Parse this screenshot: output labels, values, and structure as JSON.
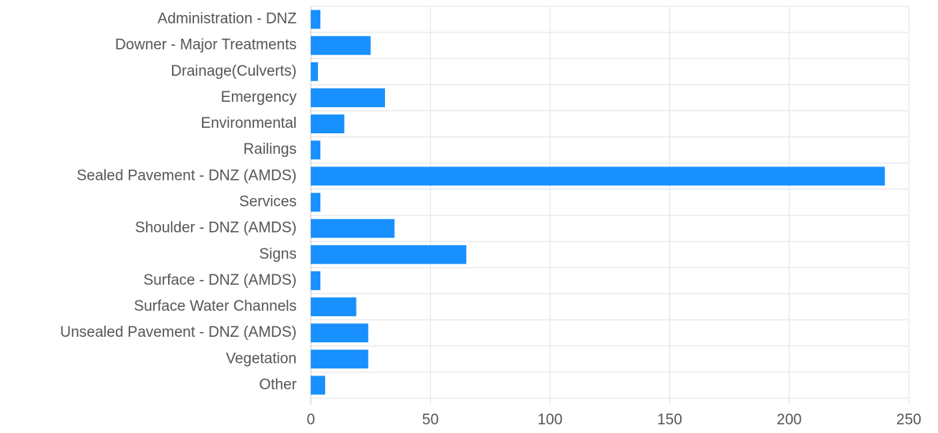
{
  "chart_data": {
    "type": "barh",
    "categories": [
      "Administration - DNZ",
      "Downer - Major Treatments",
      "Drainage(Culverts)",
      "Emergency",
      "Environmental",
      "Railings",
      "Sealed Pavement - DNZ (AMDS)",
      "Services",
      "Shoulder - DNZ (AMDS)",
      "Signs",
      "Surface - DNZ (AMDS)",
      "Surface Water Channels",
      "Unsealed Pavement - DNZ (AMDS)",
      "Vegetation",
      "Other"
    ],
    "values": [
      4,
      25,
      3,
      31,
      14,
      4,
      240,
      4,
      35,
      65,
      4,
      19,
      24,
      24,
      6
    ],
    "color": "#1890ff",
    "xlim": [
      0,
      250
    ],
    "xticks": [
      0,
      50,
      100,
      150,
      200,
      250
    ],
    "grid": true
  }
}
